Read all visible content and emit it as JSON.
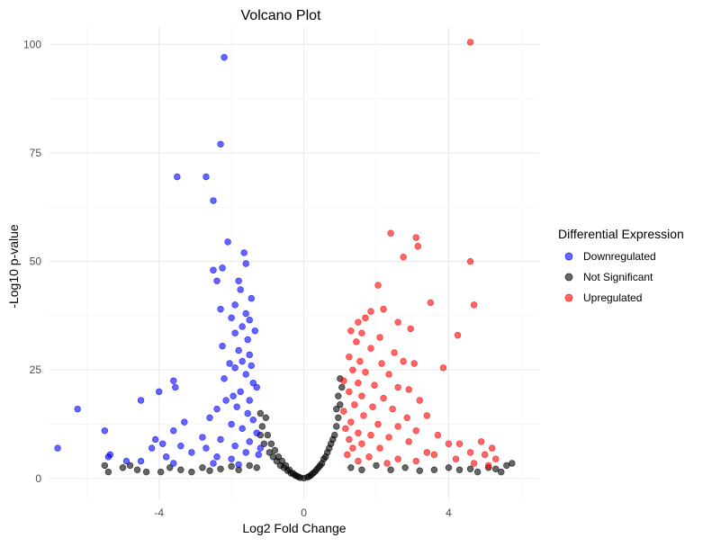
{
  "chart_data": {
    "type": "scatter",
    "title": "Volcano Plot",
    "xlabel": "Log2 Fold Change",
    "ylabel": "-Log10 p-value",
    "xlim": [
      -7.05,
      6.5
    ],
    "ylim": [
      -5,
      104
    ],
    "xticks": [
      -4,
      0,
      4
    ],
    "yticks": [
      0,
      25,
      50,
      75,
      100
    ],
    "grid": true,
    "legend": {
      "title": "Differential Expression",
      "position": "right"
    },
    "series": [
      {
        "name": "Downregulated",
        "color": "#0000ff",
        "points": [
          [
            -2.2,
            97
          ],
          [
            -2.3,
            77
          ],
          [
            -3.5,
            69.5
          ],
          [
            -2.7,
            69.5
          ],
          [
            -2.5,
            64
          ],
          [
            -2.1,
            54.5
          ],
          [
            -1.65,
            52
          ],
          [
            -1.6,
            49.5
          ],
          [
            -2.5,
            48
          ],
          [
            -2.25,
            48.5
          ],
          [
            -2.4,
            45.5
          ],
          [
            -1.8,
            45.5
          ],
          [
            -1.75,
            43.5
          ],
          [
            -1.45,
            41.5
          ],
          [
            -1.9,
            40
          ],
          [
            -2.3,
            39
          ],
          [
            -1.6,
            38
          ],
          [
            -2.0,
            37
          ],
          [
            -1.5,
            36.5
          ],
          [
            -1.7,
            35
          ],
          [
            -1.9,
            33.5
          ],
          [
            -1.35,
            34
          ],
          [
            -1.55,
            32
          ],
          [
            -2.25,
            30.5
          ],
          [
            -1.8,
            29.5
          ],
          [
            -1.5,
            28.5
          ],
          [
            -1.7,
            27
          ],
          [
            -2.05,
            26.5
          ],
          [
            -1.45,
            26
          ],
          [
            -1.9,
            25.5
          ],
          [
            -1.6,
            24
          ],
          [
            -2.2,
            23
          ],
          [
            -1.4,
            22
          ],
          [
            -1.3,
            21
          ],
          [
            -3.6,
            22.5
          ],
          [
            -3.55,
            21
          ],
          [
            -4.0,
            20
          ],
          [
            -1.75,
            20
          ],
          [
            -1.95,
            19
          ],
          [
            -2.15,
            18
          ],
          [
            -4.5,
            18
          ],
          [
            -1.5,
            18
          ],
          [
            -1.85,
            16.5
          ],
          [
            -2.4,
            16
          ],
          [
            -6.25,
            16
          ],
          [
            -1.55,
            15
          ],
          [
            -2.6,
            14
          ],
          [
            -3.3,
            13
          ],
          [
            -1.4,
            13.5
          ],
          [
            -2.0,
            12.5
          ],
          [
            -5.5,
            11
          ],
          [
            -3.6,
            11
          ],
          [
            -1.7,
            11.5
          ],
          [
            -1.3,
            10.5
          ],
          [
            -2.8,
            9.5
          ],
          [
            -2.3,
            9
          ],
          [
            -4.1,
            9
          ],
          [
            -3.9,
            8
          ],
          [
            -1.5,
            8.5
          ],
          [
            -3.4,
            7.5
          ],
          [
            -4.2,
            7
          ],
          [
            -6.8,
            7
          ],
          [
            -2.7,
            7
          ],
          [
            -1.9,
            7.5
          ],
          [
            -1.2,
            7
          ],
          [
            -5.35,
            5.5
          ],
          [
            -5.4,
            5
          ],
          [
            -3.8,
            5
          ],
          [
            -4.9,
            4
          ],
          [
            -2.4,
            5
          ],
          [
            -3.1,
            6
          ],
          [
            -1.6,
            6
          ],
          [
            -4.5,
            4
          ],
          [
            -2.0,
            4.5
          ],
          [
            -1.25,
            5.5
          ],
          [
            -2.5,
            3.5
          ],
          [
            -3.6,
            3.5
          ],
          [
            -1.8,
            3.2
          ]
        ]
      },
      {
        "name": "Not Significant",
        "color": "#000000",
        "points": [
          [
            -5.5,
            3
          ],
          [
            -5.4,
            1.5
          ],
          [
            -5.0,
            2.5
          ],
          [
            -4.6,
            2
          ],
          [
            -4.35,
            1.5
          ],
          [
            -4.8,
            3
          ],
          [
            -3.95,
            1.5
          ],
          [
            -3.7,
            2.5
          ],
          [
            -3.4,
            2
          ],
          [
            -3.1,
            1.5
          ],
          [
            -2.8,
            2.5
          ],
          [
            -2.6,
            1.8
          ],
          [
            -2.3,
            2.2
          ],
          [
            -2.0,
            2.8
          ],
          [
            -1.8,
            2
          ],
          [
            -1.5,
            3
          ],
          [
            -1.3,
            2.5
          ],
          [
            -1.2,
            15
          ],
          [
            -1.2,
            10
          ],
          [
            -1.15,
            12
          ],
          [
            -1.1,
            8
          ],
          [
            -1.05,
            14
          ],
          [
            -1.0,
            10
          ],
          [
            -0.95,
            6
          ],
          [
            -0.9,
            8
          ],
          [
            -0.85,
            5
          ],
          [
            -0.8,
            6.5
          ],
          [
            -0.75,
            4
          ],
          [
            -0.7,
            5
          ],
          [
            -0.65,
            3
          ],
          [
            -0.6,
            4
          ],
          [
            -0.55,
            2.5
          ],
          [
            -0.5,
            3
          ],
          [
            -0.45,
            1.8
          ],
          [
            -0.4,
            2
          ],
          [
            -0.35,
            1.2
          ],
          [
            -0.3,
            1.2
          ],
          [
            -0.25,
            0.8
          ],
          [
            -0.2,
            0.6
          ],
          [
            -0.15,
            0.4
          ],
          [
            -0.1,
            0.2
          ],
          [
            0.0,
            0.1
          ],
          [
            0.1,
            0.3
          ],
          [
            0.15,
            0.5
          ],
          [
            0.2,
            0.8
          ],
          [
            0.25,
            1.2
          ],
          [
            0.3,
            1.5
          ],
          [
            0.35,
            2
          ],
          [
            0.4,
            2.5
          ],
          [
            0.45,
            3
          ],
          [
            0.5,
            3.5
          ],
          [
            0.55,
            4.5
          ],
          [
            0.6,
            5
          ],
          [
            0.65,
            6
          ],
          [
            0.7,
            7
          ],
          [
            0.75,
            8
          ],
          [
            0.8,
            9
          ],
          [
            0.85,
            10
          ],
          [
            0.9,
            12
          ],
          [
            0.95,
            14
          ],
          [
            1.0,
            17
          ],
          [
            0.9,
            16
          ],
          [
            1.05,
            21
          ],
          [
            1.0,
            23
          ],
          [
            0.95,
            19
          ],
          [
            1.3,
            2.5
          ],
          [
            1.6,
            2
          ],
          [
            2.0,
            3
          ],
          [
            2.4,
            2
          ],
          [
            2.8,
            2.5
          ],
          [
            3.2,
            1.8
          ],
          [
            3.6,
            2
          ],
          [
            4.0,
            2.5
          ],
          [
            4.3,
            2
          ],
          [
            4.6,
            2.2
          ],
          [
            4.8,
            1.5
          ],
          [
            5.1,
            2.5
          ],
          [
            5.3,
            2.2
          ],
          [
            5.6,
            3
          ],
          [
            5.75,
            3.5
          ],
          [
            5.45,
            1.5
          ]
        ]
      },
      {
        "name": "Upregulated",
        "color": "#ff0000",
        "points": [
          [
            4.6,
            100.5
          ],
          [
            2.4,
            56.5
          ],
          [
            3.1,
            55.5
          ],
          [
            3.15,
            53.5
          ],
          [
            2.75,
            51
          ],
          [
            4.6,
            50
          ],
          [
            4.7,
            40
          ],
          [
            2.05,
            44.5
          ],
          [
            3.5,
            40.5
          ],
          [
            2.2,
            39
          ],
          [
            1.85,
            38.5
          ],
          [
            1.7,
            37
          ],
          [
            1.5,
            36
          ],
          [
            2.6,
            36
          ],
          [
            2.95,
            34.5
          ],
          [
            1.3,
            34
          ],
          [
            1.6,
            33.5
          ],
          [
            2.1,
            32.5
          ],
          [
            4.25,
            33
          ],
          [
            1.45,
            31.5
          ],
          [
            1.85,
            30
          ],
          [
            2.5,
            29
          ],
          [
            1.25,
            28
          ],
          [
            1.55,
            27
          ],
          [
            2.15,
            26.5
          ],
          [
            2.75,
            27
          ],
          [
            3.05,
            26.5
          ],
          [
            3.85,
            25.5
          ],
          [
            1.35,
            25
          ],
          [
            1.7,
            24.5
          ],
          [
            2.35,
            24
          ],
          [
            1.1,
            22.5
          ],
          [
            1.5,
            22
          ],
          [
            1.95,
            21.5
          ],
          [
            2.6,
            21
          ],
          [
            2.9,
            20.5
          ],
          [
            1.25,
            20
          ],
          [
            1.6,
            19
          ],
          [
            2.2,
            18.5
          ],
          [
            3.2,
            18
          ],
          [
            1.4,
            17
          ],
          [
            1.9,
            16.5
          ],
          [
            2.45,
            16
          ],
          [
            1.1,
            15.5
          ],
          [
            1.65,
            14.5
          ],
          [
            2.85,
            14
          ],
          [
            3.4,
            14.5
          ],
          [
            1.3,
            13
          ],
          [
            2.05,
            12.5
          ],
          [
            2.6,
            12
          ],
          [
            1.15,
            11.5
          ],
          [
            1.5,
            10.5
          ],
          [
            3.1,
            11
          ],
          [
            1.85,
            10
          ],
          [
            2.35,
            9.5
          ],
          [
            3.7,
            10
          ],
          [
            1.25,
            9
          ],
          [
            1.6,
            8
          ],
          [
            2.9,
            8.5
          ],
          [
            4.0,
            8
          ],
          [
            4.3,
            8
          ],
          [
            4.9,
            8.5
          ],
          [
            5.2,
            7
          ],
          [
            1.35,
            7
          ],
          [
            2.1,
            7
          ],
          [
            3.4,
            6
          ],
          [
            4.6,
            6
          ],
          [
            5.0,
            5.5
          ],
          [
            1.2,
            5.5
          ],
          [
            1.8,
            5
          ],
          [
            2.6,
            4.5
          ],
          [
            3.6,
            5.5
          ],
          [
            4.2,
            4.5
          ],
          [
            5.3,
            4.5
          ],
          [
            1.5,
            4
          ],
          [
            2.3,
            3.5
          ],
          [
            3.1,
            4
          ],
          [
            4.7,
            3.5
          ],
          [
            5.1,
            3
          ]
        ]
      }
    ]
  }
}
